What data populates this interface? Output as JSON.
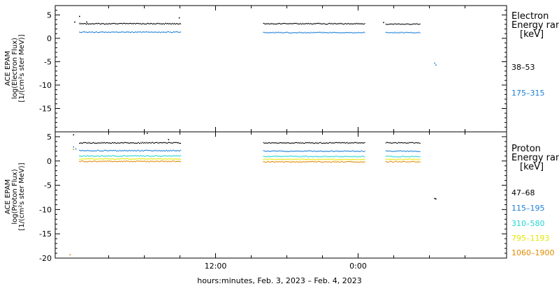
{
  "chart_data": [
    {
      "type": "scatter",
      "ylabel_lines": [
        "ACE EPAM",
        "log(Electron Flux)",
        "[1/(cm²s ster MeV)]"
      ],
      "ylim": [
        -20,
        7
      ],
      "yticks": [
        5,
        0,
        -5,
        -10,
        -15
      ],
      "legend": {
        "title": [
          "Electron",
          "Energy range",
          "[keV]"
        ],
        "entries": [
          {
            "name": "38–53",
            "color": "#000000"
          },
          {
            "name": "175–315",
            "color": "#1a7fd6"
          }
        ]
      },
      "series": [
        {
          "name": "38–53",
          "color": "#000000",
          "segments": [
            [
              0.5,
              9.0,
              3.2
            ],
            [
              16.0,
              24.5,
              3.2
            ],
            [
              26.3,
              29.2,
              3.1
            ]
          ],
          "extra_points": [
            [
              0.1,
              3.6
            ],
            [
              0.5,
              4.8
            ],
            [
              1.1,
              3.6
            ],
            [
              8.9,
              4.5
            ],
            [
              26.1,
              3.5
            ]
          ]
        },
        {
          "name": "175–315",
          "color": "#1a7fd6",
          "segments": [
            [
              0.5,
              9.0,
              1.4
            ],
            [
              16.0,
              24.5,
              1.3
            ],
            [
              26.3,
              29.2,
              1.3
            ]
          ],
          "extra_points": [
            [
              30.4,
              -5.2
            ],
            [
              30.5,
              -5.6
            ]
          ]
        }
      ]
    },
    {
      "type": "scatter",
      "ylabel_lines": [
        "ACE EPAM",
        "log(Proton Flux)",
        "[1/(cm²s ster MeV)]"
      ],
      "ylim": [
        -20,
        6
      ],
      "yticks": [
        5,
        0,
        -5,
        -10,
        -15,
        -20
      ],
      "xlabel": "hours:minutes, Feb.  3, 2023 – Feb.  4, 2023",
      "x_tick_labels": [
        {
          "x": 12,
          "label": "12:00"
        },
        {
          "x": 24,
          "label": "0:00"
        }
      ],
      "x_major": [
        12,
        24
      ],
      "x_minor": [
        3,
        6,
        9,
        15,
        18,
        21,
        27,
        30,
        33
      ],
      "xlim": [
        -1.5,
        36.5
      ],
      "legend": {
        "title": [
          "Proton",
          "Energy range",
          "[keV]"
        ],
        "entries": [
          {
            "name": "47–68",
            "color": "#000000"
          },
          {
            "name": "115–195",
            "color": "#1a7fd6"
          },
          {
            "name": "310–580",
            "color": "#22d3d3"
          },
          {
            "name": "795–1193",
            "color": "#e6e600"
          },
          {
            "name": "1060–1900",
            "color": "#e08a00"
          }
        ]
      },
      "series": [
        {
          "name": "47–68",
          "color": "#000000",
          "segments": [
            [
              0.5,
              9.0,
              3.8
            ],
            [
              16.0,
              24.5,
              3.8
            ],
            [
              26.3,
              29.2,
              3.8
            ]
          ],
          "extra_points": [
            [
              0.0,
              5.5
            ],
            [
              6.2,
              5.8
            ],
            [
              8.0,
              4.5
            ],
            [
              30.4,
              -7.6
            ],
            [
              30.5,
              -7.7
            ]
          ]
        },
        {
          "name": "115–195",
          "color": "#1a7fd6",
          "segments": [
            [
              0.5,
              9.0,
              2.2
            ],
            [
              16.0,
              24.5,
              2.1
            ],
            [
              26.3,
              29.2,
              2.1
            ]
          ],
          "extra_points": [
            [
              0.2,
              2.6
            ],
            [
              0.0,
              3.0
            ]
          ]
        },
        {
          "name": "310–580",
          "color": "#22d3d3",
          "segments": [
            [
              0.5,
              9.0,
              1.1
            ],
            [
              16.0,
              24.5,
              1.0
            ],
            [
              26.3,
              29.2,
              1.0
            ]
          ],
          "extra_points": []
        },
        {
          "name": "795–1193",
          "color": "#e6e600",
          "segments": [
            [
              0.5,
              9.0,
              0.5
            ],
            [
              16.0,
              24.5,
              0.4
            ],
            [
              26.3,
              29.2,
              0.4
            ]
          ],
          "extra_points": []
        },
        {
          "name": "1060–1900",
          "color": "#e08a00",
          "segments": [
            [
              0.5,
              9.0,
              0.0
            ],
            [
              16.0,
              24.5,
              -0.1
            ],
            [
              26.3,
              29.2,
              -0.1
            ]
          ],
          "extra_points": [
            [
              0.0,
              2.5
            ],
            [
              -0.3,
              -19.2
            ]
          ]
        }
      ]
    }
  ]
}
